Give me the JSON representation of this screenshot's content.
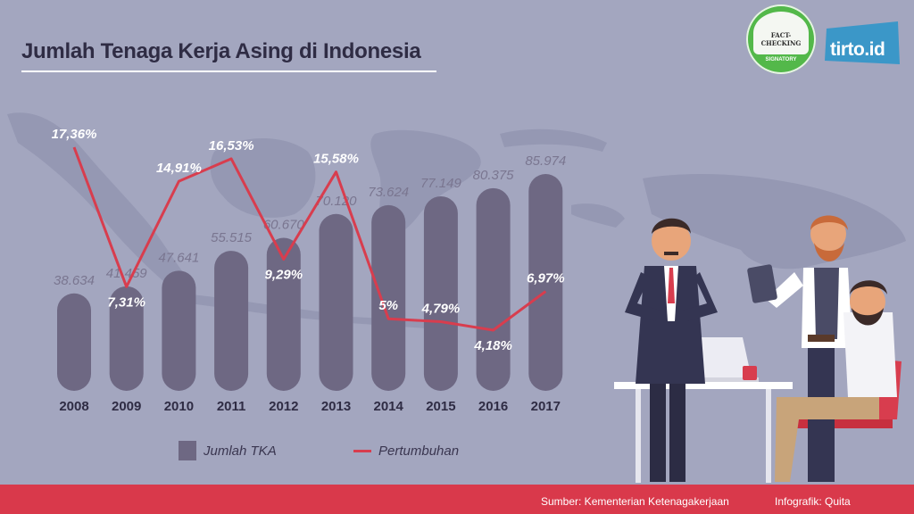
{
  "title": "Jumlah Tenaga Kerja Asing di Indonesia",
  "badge": {
    "line1": "FACT-CHECKING",
    "line2": "SIGNATORY"
  },
  "brand": "tirto.id",
  "chart_data": {
    "type": "bar",
    "categories": [
      "2008",
      "2009",
      "2010",
      "2011",
      "2012",
      "2013",
      "2014",
      "2015",
      "2016",
      "2017"
    ],
    "series": [
      {
        "name": "Jumlah TKA",
        "type": "bar",
        "values": [
          38634,
          41459,
          47641,
          55515,
          60670,
          70120,
          73624,
          77149,
          80375,
          85974
        ],
        "labels": [
          "38.634",
          "41.459",
          "47.641",
          "55.515",
          "60.670",
          "70.120",
          "73.624",
          "77.149",
          "80.375",
          "85.974"
        ],
        "color": "#6e6883"
      },
      {
        "name": "Pertumbuhan",
        "type": "line",
        "values": [
          17.36,
          7.31,
          14.91,
          16.53,
          9.29,
          15.58,
          5,
          4.79,
          4.18,
          6.97
        ],
        "labels": [
          "17,36%",
          "7,31%",
          "14,91%",
          "16,53%",
          "9,29%",
          "15,58%",
          "5%",
          "4,79%",
          "4,18%",
          "6,97%"
        ],
        "color": "#d83d4e"
      }
    ],
    "legend": "bottom-left"
  },
  "footer": {
    "source": "Sumber: Kementerian Ketenagakerjaan",
    "credit": "Infografik: Quita"
  }
}
